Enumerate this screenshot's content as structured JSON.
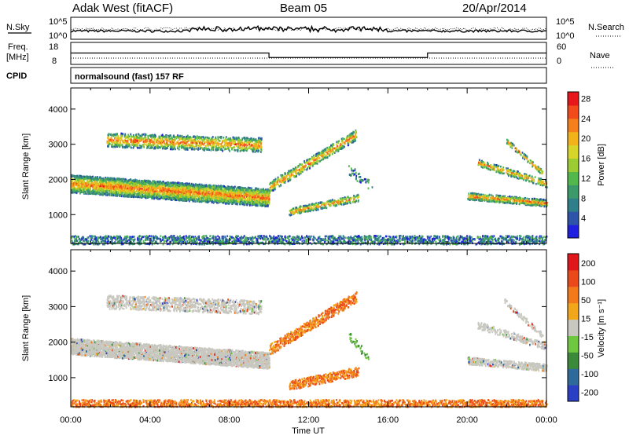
{
  "header": {
    "station": "Adak West (fitACF)",
    "beam": "Beam 05",
    "date": "20/Apr/2014"
  },
  "strip_labels": {
    "nsky": "N.Sky",
    "nsearch": "N.Search",
    "log_top": "10^5",
    "log_bot": "10^0",
    "freq": "Freq.",
    "mhz": "[MHz]",
    "cpid": "CPID",
    "nave": "Nave",
    "freq_top": "18",
    "freq_bot": "8",
    "nave_top": "60",
    "nave_bot": "0",
    "cpid_text": "normalsound (fast) 157 RF"
  },
  "chart_data": [
    {
      "type": "heatmap",
      "title": "",
      "ylabel": "Slant Range [km]",
      "xlabel": "Time UT",
      "x_ticks": [
        "00:00",
        "04:00",
        "08:00",
        "12:00",
        "16:00",
        "20:00",
        "00:00"
      ],
      "x_tick_hours": [
        0,
        4,
        8,
        12,
        16,
        20,
        24
      ],
      "xlim": [
        0,
        24
      ],
      "ylim": [
        180,
        4600
      ],
      "y_ticks": [
        1000,
        2000,
        3000,
        4000
      ],
      "colorbar": {
        "label": "Power [dB]",
        "ticks": [
          "4",
          "8",
          "12",
          "16",
          "20",
          "24",
          "28"
        ],
        "colors": [
          "#1f1fe0",
          "#2d54a8",
          "#2f7f8a",
          "#3c9a6a",
          "#53b84b",
          "#9ccc33",
          "#d8d52a",
          "#f2b21a",
          "#f57f1a",
          "#f24a1a",
          "#e6161a"
        ]
      }
    },
    {
      "type": "heatmap",
      "title": "",
      "ylabel": "Slant Range [km]",
      "xlabel": "Time UT",
      "x_ticks": [
        "00:00",
        "04:00",
        "08:00",
        "12:00",
        "16:00",
        "20:00",
        "00:00"
      ],
      "x_tick_hours": [
        0,
        4,
        8,
        12,
        16,
        20,
        24
      ],
      "xlim": [
        0,
        24
      ],
      "ylim": [
        180,
        4600
      ],
      "y_ticks": [
        1000,
        2000,
        3000,
        4000
      ],
      "colorbar": {
        "label": "Velocity [m s⁻¹]",
        "ticks": [
          "200",
          "100",
          "50",
          "15",
          "-15",
          "-50",
          "-100",
          "-200"
        ],
        "colors": [
          "#2a3fc4",
          "#2e6a9a",
          "#3a8a3a",
          "#6fc63f",
          "#c8c8c0",
          "#f2a61a",
          "#f27a1a",
          "#ea4a1a",
          "#e0161a"
        ]
      }
    }
  ],
  "colors": {
    "gray": "#c8c8c0",
    "axis": "#000000"
  }
}
